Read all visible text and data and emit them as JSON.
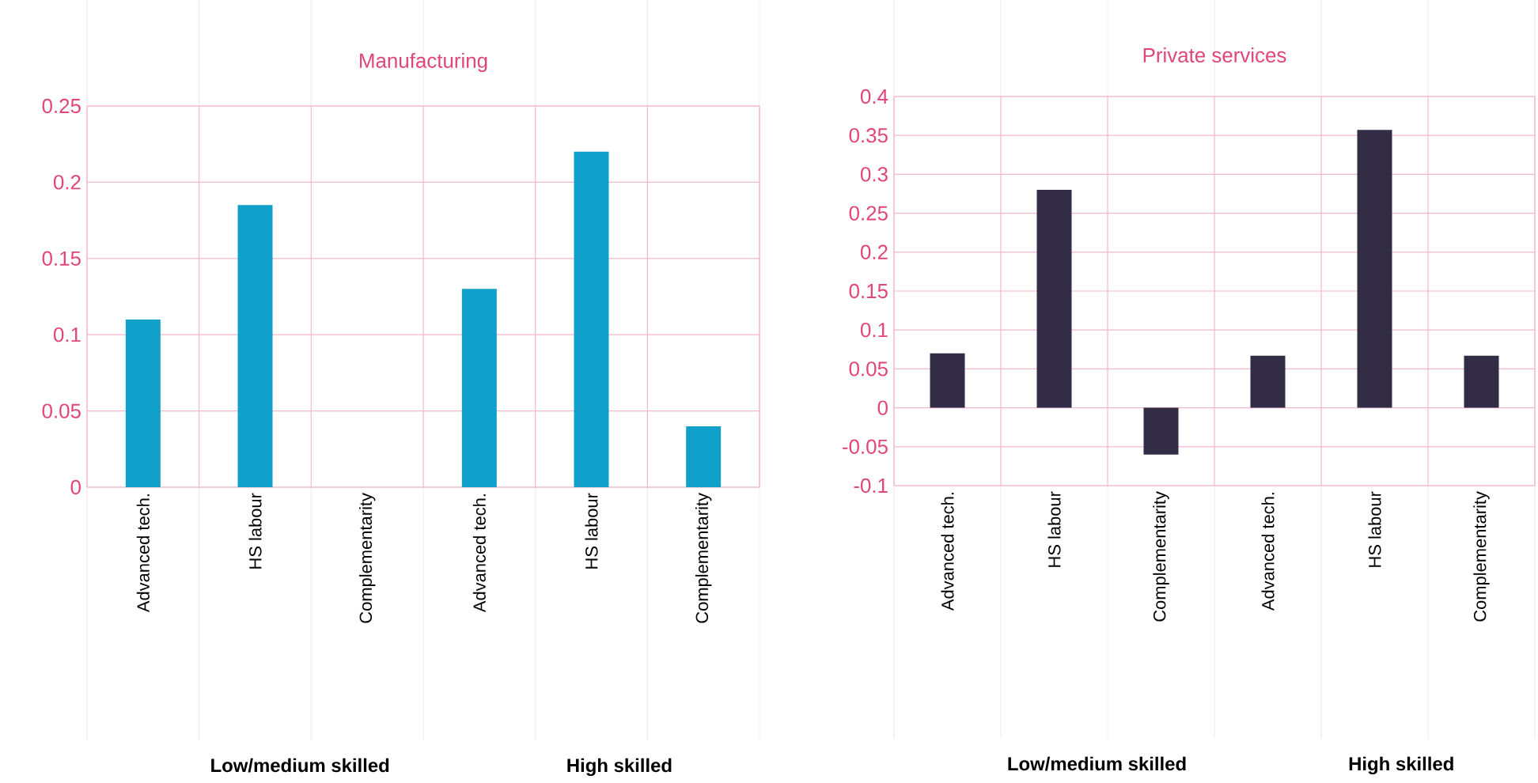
{
  "chart_data": [
    {
      "type": "bar",
      "title": "Manufacturing",
      "categories": [
        "Advanced tech.",
        "HS labour",
        "Complementarity",
        "Advanced tech.",
        "HS labour",
        "Complementarity"
      ],
      "values": [
        0.11,
        0.185,
        0,
        0.13,
        0.22,
        0.04
      ],
      "color": "#11a0c9",
      "ylim": [
        0,
        0.25
      ],
      "yticks": [
        0,
        0.05,
        0.1,
        0.15,
        0.2,
        0.25
      ],
      "grid": true,
      "annotations": [
        "Low/medium skilled",
        "High skilled"
      ]
    },
    {
      "type": "bar",
      "title": "Private services",
      "categories": [
        "Advanced tech.",
        "HS labour",
        "Complementarity",
        "Advanced tech.",
        "HS labour",
        "Complementarity"
      ],
      "values": [
        0.07,
        0.28,
        -0.06,
        0.067,
        0.357,
        0.067
      ],
      "color": "#332c45",
      "ylim": [
        -0.1,
        0.4
      ],
      "yticks": [
        -0.1,
        -0.05,
        0,
        0.05,
        0.1,
        0.15,
        0.2,
        0.25,
        0.3,
        0.35,
        0.4
      ],
      "grid": true,
      "annotations": [
        "Low/medium skilled",
        "High skilled"
      ]
    }
  ]
}
